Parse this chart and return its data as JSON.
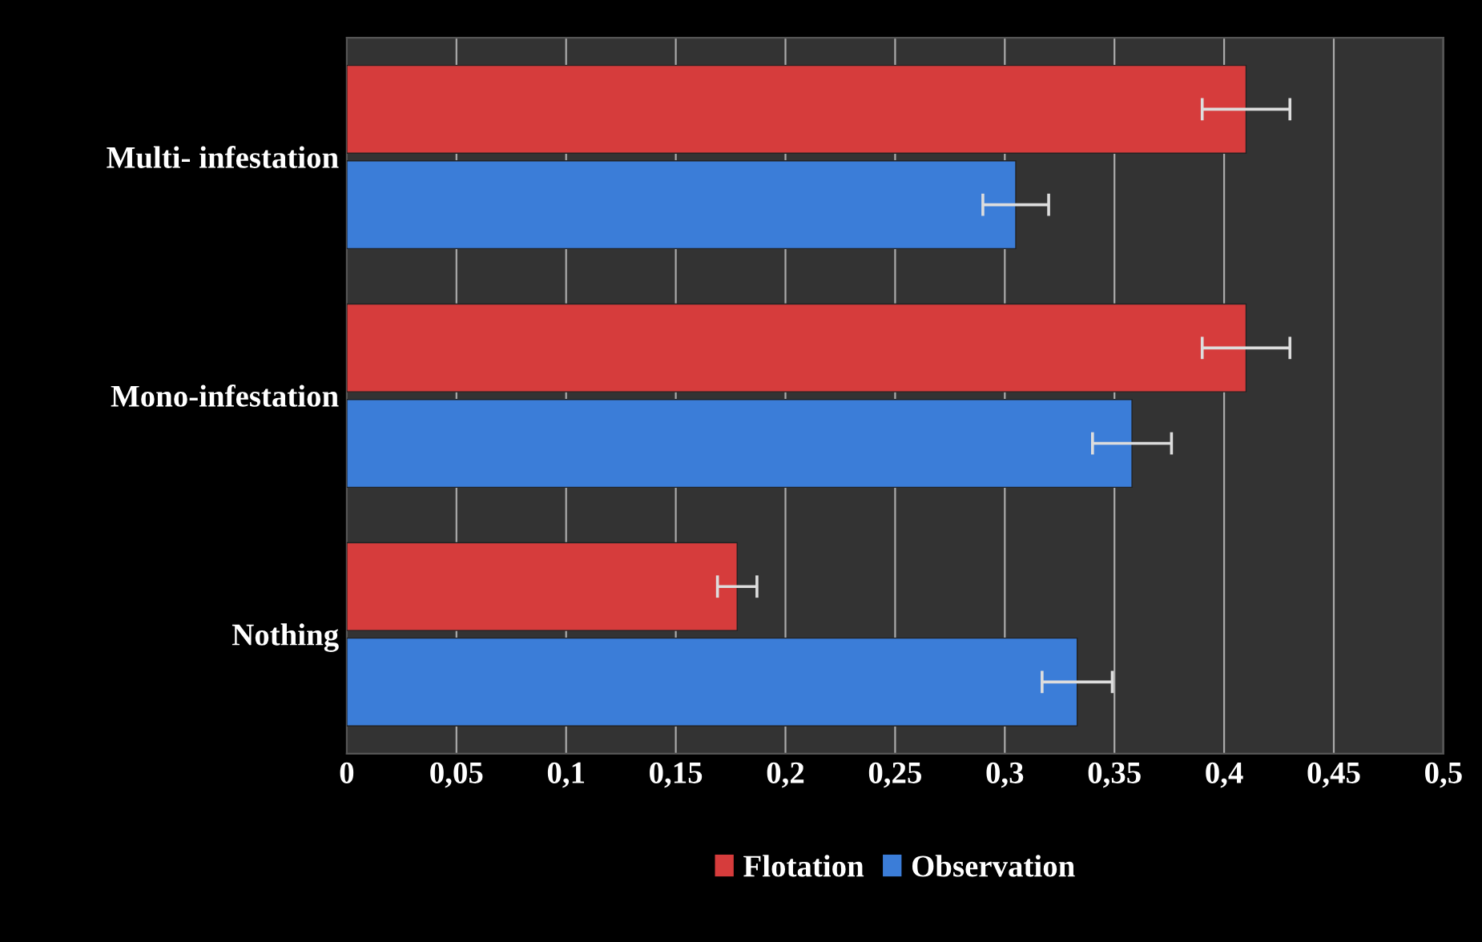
{
  "chart_data": {
    "type": "bar",
    "orientation": "horizontal",
    "categories": [
      "Multi- infestation",
      "Mono-infestation",
      "Nothing"
    ],
    "series": [
      {
        "name": "Flotation",
        "color": "#d63c3c",
        "values": [
          0.41,
          0.41,
          0.178
        ],
        "errors": [
          0.02,
          0.02,
          0.009
        ]
      },
      {
        "name": "Observation",
        "color": "#3b7dd8",
        "values": [
          0.305,
          0.358,
          0.333
        ],
        "errors": [
          0.015,
          0.018,
          0.016
        ]
      }
    ],
    "xlim": [
      0,
      0.5
    ],
    "xticks": [
      0,
      {
        "value": 0.05,
        "label": "0,05"
      },
      {
        "value": 0.1,
        "label": "0,1"
      },
      {
        "value": 0.15,
        "label": "0,15"
      },
      {
        "value": 0.2,
        "label": "0,2"
      },
      {
        "value": 0.25,
        "label": "0,25"
      },
      {
        "value": 0.3,
        "label": "0,3"
      },
      {
        "value": 0.35,
        "label": "0,35"
      },
      {
        "value": 0.4,
        "label": "0,4"
      },
      {
        "value": 0.45,
        "label": "0,45"
      },
      {
        "value": 0.5,
        "label": "0,5"
      }
    ],
    "grid": "x",
    "legend": "bottom"
  }
}
